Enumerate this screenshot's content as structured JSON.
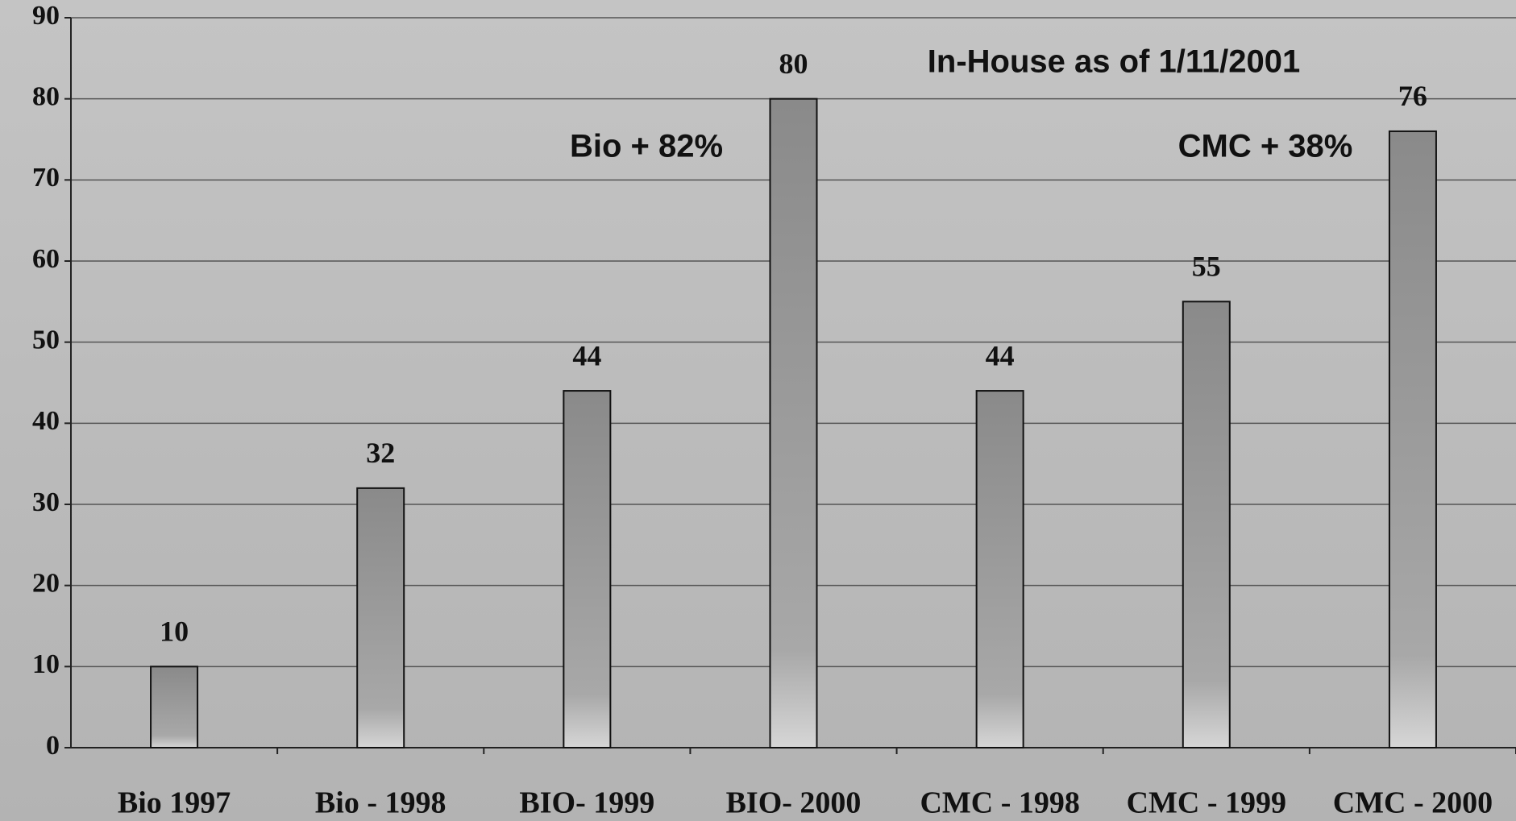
{
  "chart_data": {
    "type": "bar",
    "categories": [
      "Bio 1997",
      "Bio - 1998",
      "BIO- 1999",
      "BIO- 2000",
      "CMC - 1998",
      "CMC - 1999",
      "CMC - 2000"
    ],
    "values": [
      10,
      32,
      44,
      80,
      44,
      55,
      76
    ],
    "color": "#8c8c8c",
    "ylim": [
      0,
      90
    ],
    "yticks": [
      0,
      10,
      20,
      30,
      40,
      50,
      60,
      70,
      80,
      90
    ],
    "grid": true,
    "annotations": [
      "In-House as of 1/11/2001",
      "Bio + 82%",
      "CMC + 38%"
    ]
  }
}
